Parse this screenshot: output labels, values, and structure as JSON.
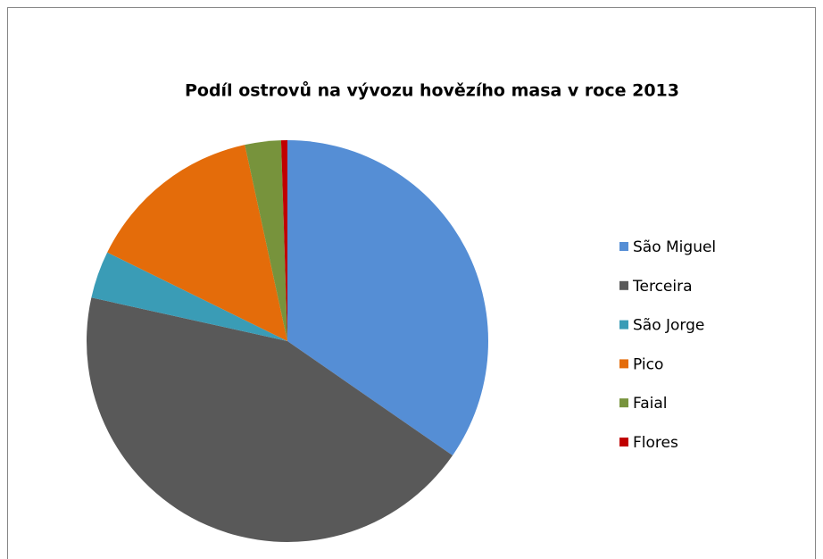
{
  "chart_data": {
    "type": "pie",
    "title": "Podíl ostrovů na vývozu hovězího masa v roce 2013",
    "categories": [
      "São Miguel",
      "Terceira",
      "São Jorge",
      "Pico",
      "Faial",
      "Flores"
    ],
    "values": [
      34.6,
      43.8,
      3.8,
      14.3,
      2.9,
      0.5
    ],
    "colors": [
      "#558ed5",
      "#595959",
      "#3a9cb6",
      "#e46c0a",
      "#77933c",
      "#c00000"
    ],
    "legend": "right"
  }
}
